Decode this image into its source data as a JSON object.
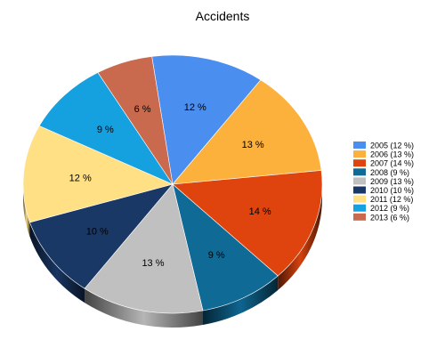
{
  "chart_data": {
    "type": "pie",
    "title": "Accidents",
    "legend_position": "right",
    "three_d": true,
    "slices": [
      {
        "label": "2005",
        "value": 12,
        "color": "#4a8ef0"
      },
      {
        "label": "2006",
        "value": 13,
        "color": "#fbb13c"
      },
      {
        "label": "2007",
        "value": 14,
        "color": "#e0440e"
      },
      {
        "label": "2008",
        "value": 9,
        "color": "#0f6a96"
      },
      {
        "label": "2009",
        "value": 13,
        "color": "#c0c0c0"
      },
      {
        "label": "2010",
        "value": 10,
        "color": "#1a3866"
      },
      {
        "label": "2011",
        "value": 12,
        "color": "#ffe085"
      },
      {
        "label": "2012",
        "value": 9,
        "color": "#15a0e0"
      },
      {
        "label": "2013",
        "value": 6,
        "color": "#c96a4e"
      }
    ],
    "slice_labels": [
      "12 %",
      "13 %",
      "14 %",
      "9 %",
      "13 %",
      "10 %",
      "12 %",
      "9 %",
      "6 %"
    ],
    "legend_entries": [
      "2005  (12 %)",
      "2006  (13 %)",
      "2007  (14 %)",
      "2008  (9 %)",
      "2009  (13 %)",
      "2010  (10 %)",
      "2011  (12 %)",
      "2012  (9 %)",
      "2013  (6 %)"
    ]
  }
}
